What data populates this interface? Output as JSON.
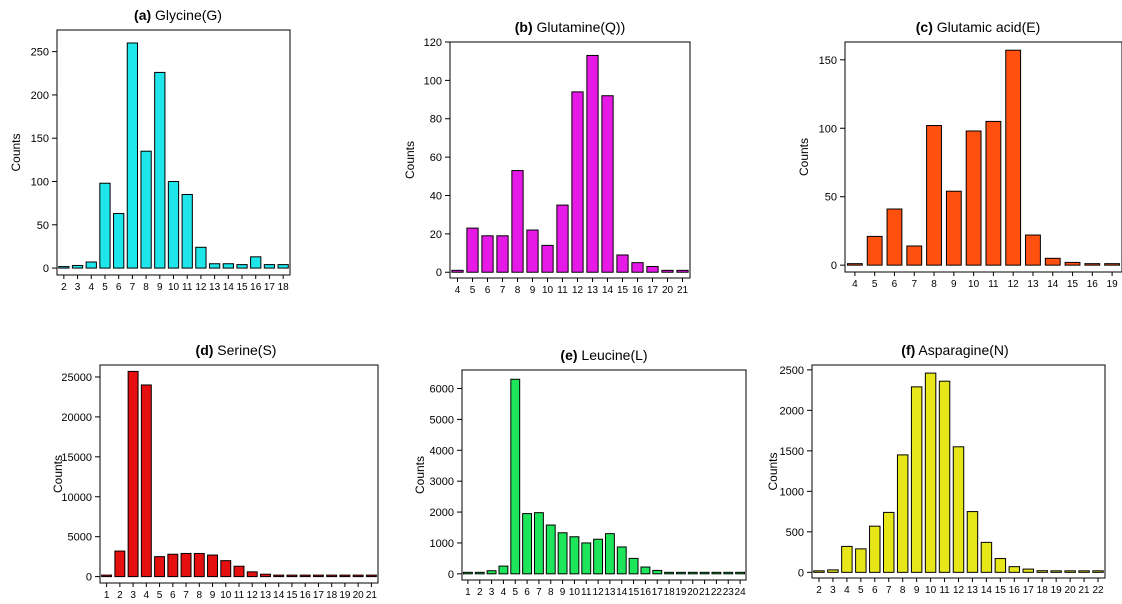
{
  "chart_data": [
    {
      "type": "bar",
      "title_letter": "(a)",
      "title_name": "Glycine(G)",
      "xlabel": "",
      "ylabel": "Counts",
      "color": "#1ee6ea",
      "categories": [
        "2",
        "3",
        "4",
        "5",
        "6",
        "7",
        "8",
        "9",
        "10",
        "11",
        "12",
        "13",
        "14",
        "15",
        "16",
        "17",
        "18"
      ],
      "values": [
        1,
        3,
        7,
        98,
        63,
        260,
        135,
        226,
        100,
        85,
        24,
        5,
        5,
        4,
        13,
        4,
        4
      ],
      "ylim": [
        -8,
        275
      ],
      "yticks": [
        0,
        50,
        100,
        150,
        200,
        250
      ]
    },
    {
      "type": "bar",
      "title_letter": "(b)",
      "title_name": "Glutamine(Q))",
      "xlabel": "",
      "ylabel": "Counts",
      "color": "#e619e6",
      "categories": [
        "4",
        "5",
        "6",
        "7",
        "8",
        "9",
        "10",
        "11",
        "12",
        "13",
        "14",
        "15",
        "16",
        "17",
        "20",
        "21"
      ],
      "values": [
        1,
        23,
        19,
        19,
        53,
        22,
        14,
        35,
        94,
        113,
        92,
        9,
        5,
        3,
        1,
        1
      ],
      "ylim": [
        -3,
        120
      ],
      "yticks": [
        0,
        20,
        40,
        60,
        80,
        100,
        120
      ]
    },
    {
      "type": "bar",
      "title_letter": "(c)",
      "title_name": "Glutamic acid(E)",
      "xlabel": "",
      "ylabel": "Counts",
      "color": "#ff5010",
      "categories": [
        "4",
        "5",
        "6",
        "7",
        "8",
        "9",
        "10",
        "11",
        "12",
        "13",
        "14",
        "15",
        "16",
        "19"
      ],
      "values": [
        1,
        21,
        41,
        14,
        102,
        54,
        98,
        105,
        157,
        22,
        5,
        2,
        1,
        1
      ],
      "ylim": [
        -5,
        163
      ],
      "yticks": [
        0,
        50,
        100,
        150
      ]
    },
    {
      "type": "bar",
      "title_letter": "(d)",
      "title_name": "Serine(S)",
      "xlabel": "",
      "ylabel": "Counts",
      "color": "#e60f0f",
      "categories": [
        "1",
        "2",
        "3",
        "4",
        "5",
        "6",
        "7",
        "8",
        "9",
        "10",
        "11",
        "12",
        "13",
        "14",
        "15",
        "16",
        "17",
        "18",
        "19",
        "20",
        "21"
      ],
      "values": [
        0,
        3200,
        25700,
        24000,
        2500,
        2800,
        2900,
        2900,
        2700,
        2000,
        1300,
        600,
        300,
        100,
        50,
        30,
        20,
        10,
        10,
        5,
        5
      ],
      "ylim": [
        -800,
        26500
      ],
      "yticks": [
        0,
        5000,
        10000,
        15000,
        20000,
        25000
      ]
    },
    {
      "type": "bar",
      "title_letter": "(e)",
      "title_name": "Leucine(L)",
      "xlabel": "",
      "ylabel": "Counts",
      "color": "#1ee65a",
      "categories": [
        "1",
        "2",
        "3",
        "4",
        "5",
        "6",
        "7",
        "8",
        "9",
        "10",
        "11",
        "12",
        "13",
        "14",
        "15",
        "16",
        "17",
        "18",
        "19",
        "20",
        "21",
        "22",
        "23",
        "24"
      ],
      "values": [
        0,
        10,
        100,
        250,
        6300,
        1950,
        1980,
        1580,
        1330,
        1200,
        1000,
        1120,
        1300,
        870,
        500,
        220,
        110,
        40,
        20,
        10,
        5,
        5,
        3,
        2
      ],
      "ylim": [
        -200,
        6600
      ],
      "yticks": [
        0,
        1000,
        2000,
        3000,
        4000,
        5000,
        6000
      ]
    },
    {
      "type": "bar",
      "title_letter": "(f)",
      "title_name": "Asparagine(N)",
      "xlabel": "",
      "ylabel": "Counts",
      "color": "#e6e619",
      "categories": [
        "2",
        "3",
        "4",
        "5",
        "6",
        "7",
        "8",
        "9",
        "10",
        "11",
        "12",
        "13",
        "14",
        "15",
        "16",
        "17",
        "18",
        "19",
        "20",
        "21",
        "22"
      ],
      "values": [
        5,
        30,
        320,
        290,
        570,
        740,
        1450,
        2290,
        2460,
        2360,
        1550,
        750,
        370,
        170,
        70,
        40,
        20,
        10,
        5,
        5,
        3
      ],
      "ylim": [
        -70,
        2560
      ],
      "yticks": [
        0,
        500,
        1000,
        1500,
        2000,
        2500
      ]
    }
  ]
}
